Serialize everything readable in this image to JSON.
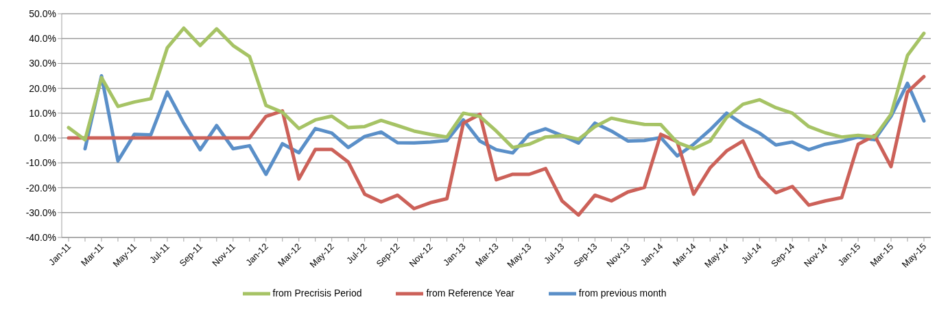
{
  "chart_data": {
    "type": "line",
    "categories": [
      "Jan-11",
      null,
      "Mar-11",
      null,
      "May-11",
      null,
      "Jul-11",
      null,
      "Sep-11",
      null,
      "Nov-11",
      null,
      "Jan-12",
      null,
      "Mar-12",
      null,
      "May-12",
      null,
      "Jul-12",
      null,
      "Sep-12",
      null,
      "Nov-12",
      null,
      "Jan-13",
      null,
      "Mar-13",
      null,
      "May-13",
      null,
      "Jul-13",
      null,
      "Sep-13",
      null,
      "Nov-13",
      null,
      "Jan-14",
      null,
      "Mar-14",
      null,
      "May-14",
      null,
      "Jul-14",
      null,
      "Sep-14",
      null,
      "Nov-14",
      null,
      "Jan-15",
      null,
      "Mar-15",
      null,
      "May-15"
    ],
    "series": [
      {
        "name": "from previous month",
        "color": "#5a8fc8",
        "values": [
          null,
          -4.3,
          25,
          -9.2,
          1.5,
          1.3,
          18.5,
          6,
          -4.7,
          5,
          -4.3,
          -3.1,
          -14.6,
          -2.3,
          -5.9,
          3.8,
          2,
          -3.8,
          0.6,
          2.4,
          -1.9,
          -2,
          -1.6,
          -1,
          7.3,
          -1.2,
          -4.7,
          -6,
          1.5,
          3.7,
          1,
          -2,
          6,
          2.8,
          -1.2,
          -1,
          0.2,
          -7.2,
          -2.5,
          3.3,
          10,
          5.5,
          2,
          -2.8,
          -1.6,
          -4.7,
          -2.5,
          -1.3,
          0.4,
          -0.7,
          8.7,
          22,
          6.9
        ]
      },
      {
        "name": "from Reference Year",
        "color": "#cc6159",
        "values": [
          0,
          0,
          0,
          0,
          0,
          0,
          0,
          0,
          0,
          0,
          0,
          0,
          8.7,
          10.9,
          -16.5,
          -4.6,
          -4.6,
          -9.6,
          -22.6,
          -25.7,
          -23,
          -28.4,
          -26,
          -24.4,
          6,
          9.5,
          -16.8,
          -14.6,
          -14.6,
          -12.3,
          -25.3,
          -31,
          -23,
          -25.3,
          -21.7,
          -19.9,
          1.5,
          -1.5,
          -22.6,
          -12,
          -5.2,
          -1.2,
          -15.5,
          -22,
          -19.5,
          -27,
          -25.3,
          -24,
          -2.5,
          1,
          -11.5,
          18.5,
          24.7
        ]
      },
      {
        "name": "from Precrisis Period",
        "color": "#a6c365",
        "values": [
          4.2,
          -0.7,
          24.3,
          12.7,
          14.5,
          15.8,
          36.3,
          44.2,
          37.2,
          43.9,
          37.2,
          32.8,
          13.1,
          10.4,
          3.8,
          7.3,
          8.8,
          4.2,
          4.6,
          7.1,
          5,
          2.8,
          1.5,
          0.4,
          10,
          8.7,
          2.8,
          -3.8,
          -2.5,
          0.4,
          1,
          -0.5,
          4.6,
          8,
          6.6,
          5.5,
          5.4,
          -1.8,
          -4.3,
          -1.2,
          8.2,
          13.6,
          15.4,
          12.2,
          10,
          4.6,
          2.1,
          0.4,
          1.1,
          0.4,
          9.6,
          33.2,
          42.1
        ]
      }
    ],
    "ylim": [
      -40,
      50
    ],
    "yticks": [
      {
        "value": -40,
        "label": "-40.0%"
      },
      {
        "value": -30,
        "label": "-30.0%"
      },
      {
        "value": -20,
        "label": "-20.0%"
      },
      {
        "value": -10,
        "label": "-10.0%"
      },
      {
        "value": 0,
        "label": "0.0%"
      },
      {
        "value": 10,
        "label": "10.0%"
      },
      {
        "value": 20,
        "label": "20.0%"
      },
      {
        "value": 30,
        "label": "30.0%"
      },
      {
        "value": 40,
        "label": "40.0%"
      },
      {
        "value": 50,
        "label": "50.0%"
      }
    ],
    "grid": "y",
    "legend": "bottom",
    "marker": "none",
    "line_style": "solid"
  }
}
